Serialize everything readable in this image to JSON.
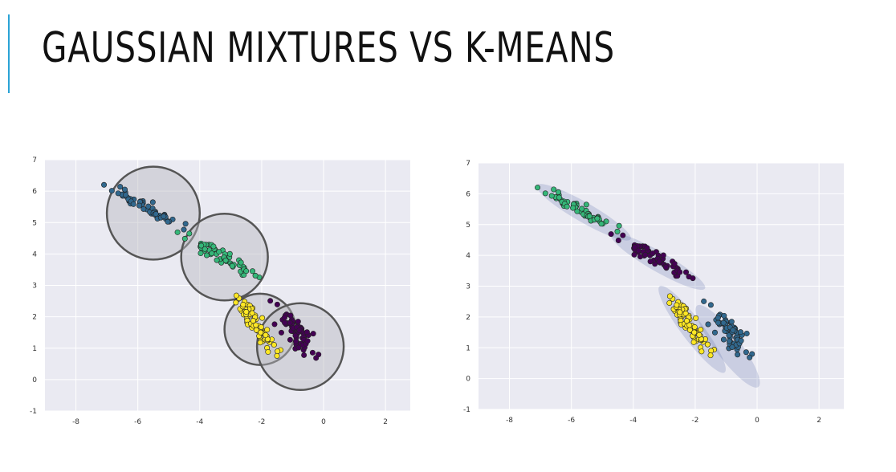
{
  "slide": {
    "title": "GAUSSIAN MIXTURES VS K-MEANS",
    "accent_color": "#2aa3d6"
  },
  "chart_data": [
    {
      "type": "scatter",
      "panel": "left",
      "xlim": [
        -9,
        2.8
      ],
      "ylim": [
        -1,
        7
      ],
      "xticks": [
        -8,
        -6,
        -4,
        -2,
        0,
        2
      ],
      "yticks": [
        -1,
        0,
        1,
        2,
        3,
        4,
        5,
        6,
        7
      ],
      "grid": true,
      "background": "#eaeaf2",
      "series": [
        {
          "color": "#31688e",
          "center": [
            -5.75,
            5.5
          ],
          "direction": [
            0.866,
            -0.5
          ],
          "spread": [
            0.6,
            0.09
          ],
          "n": 60,
          "seed": 11
        },
        {
          "color": "#35b779",
          "center": [
            -3.3,
            3.9
          ],
          "direction": [
            0.866,
            -0.5
          ],
          "spread": [
            0.6,
            0.09
          ],
          "n": 60,
          "seed": 23
        },
        {
          "color": "#fde725",
          "center": [
            -2.15,
            1.7
          ],
          "direction": [
            0.6,
            -0.8
          ],
          "spread": [
            0.5,
            0.12
          ],
          "n": 65,
          "seed": 37
        },
        {
          "color": "#440154",
          "center": [
            -0.85,
            1.5
          ],
          "direction": [
            0.6,
            -0.8
          ],
          "spread": [
            0.5,
            0.18
          ],
          "n": 65,
          "seed": 53
        }
      ],
      "circles": [
        {
          "center": [
            -5.5,
            5.3
          ],
          "radius": 1.5
        },
        {
          "center": [
            -3.2,
            3.9
          ],
          "radius": 1.4
        },
        {
          "center": [
            -2.05,
            1.6
          ],
          "radius": 1.15
        },
        {
          "center": [
            -0.75,
            1.05
          ],
          "radius": 1.4
        }
      ],
      "circle_fill": "rgba(185,185,190,0.45)",
      "circle_stroke": "#555555"
    },
    {
      "type": "scatter",
      "panel": "right",
      "xlim": [
        -9,
        2.8
      ],
      "ylim": [
        -1,
        7
      ],
      "xticks": [
        -8,
        -6,
        -4,
        -2,
        0,
        2
      ],
      "yticks": [
        -1,
        0,
        1,
        2,
        3,
        4,
        5,
        6,
        7
      ],
      "grid": true,
      "background": "#eaeaf2",
      "series": [
        {
          "color": "#35b779",
          "center": [
            -5.75,
            5.5
          ],
          "direction": [
            0.866,
            -0.5
          ],
          "spread": [
            0.6,
            0.09
          ],
          "n": 60,
          "seed": 11
        },
        {
          "color": "#440154",
          "center": [
            -3.3,
            3.9
          ],
          "direction": [
            0.866,
            -0.5
          ],
          "spread": [
            0.6,
            0.09
          ],
          "n": 60,
          "seed": 23
        },
        {
          "color": "#fde725",
          "center": [
            -2.15,
            1.7
          ],
          "direction": [
            0.6,
            -0.8
          ],
          "spread": [
            0.5,
            0.12
          ],
          "n": 65,
          "seed": 37
        },
        {
          "color": "#31688e",
          "center": [
            -0.85,
            1.5
          ],
          "direction": [
            0.6,
            -0.8
          ],
          "spread": [
            0.5,
            0.18
          ],
          "n": 65,
          "seed": 53
        }
      ],
      "ellipses": [
        {
          "center": [
            -5.6,
            5.4
          ],
          "direction": [
            0.866,
            -0.5
          ],
          "semi": [
            1.75,
            0.32
          ]
        },
        {
          "center": [
            -3.2,
            3.8
          ],
          "direction": [
            0.866,
            -0.5
          ],
          "semi": [
            1.75,
            0.32
          ]
        },
        {
          "center": [
            -2.1,
            1.6
          ],
          "direction": [
            0.6,
            -0.8
          ],
          "semi": [
            1.75,
            0.35
          ]
        },
        {
          "center": [
            -0.95,
            1.05
          ],
          "direction": [
            0.6,
            -0.8
          ],
          "semi": [
            1.65,
            0.4
          ]
        }
      ],
      "ellipse_fill": "rgba(90,110,170,0.22)"
    }
  ]
}
